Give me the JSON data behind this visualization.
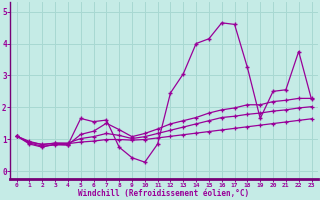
{
  "xlabel": "Windchill (Refroidissement éolien,°C)",
  "background_color": "#c5ebe6",
  "grid_color": "#a8d8d2",
  "line_color": "#990099",
  "spine_color": "#770077",
  "x_values": [
    0,
    1,
    2,
    3,
    4,
    5,
    6,
    7,
    8,
    9,
    10,
    11,
    12,
    13,
    14,
    15,
    16,
    17,
    18,
    19,
    20,
    21,
    22,
    23
  ],
  "series1": [
    1.1,
    0.85,
    0.75,
    0.85,
    0.82,
    1.65,
    1.55,
    1.6,
    0.75,
    0.42,
    0.28,
    0.85,
    2.45,
    3.05,
    4.0,
    4.15,
    4.65,
    4.6,
    3.25,
    1.65,
    2.5,
    2.55,
    3.75,
    2.25
  ],
  "series2": [
    1.1,
    0.88,
    0.78,
    0.82,
    0.82,
    1.15,
    1.25,
    1.5,
    1.3,
    1.08,
    1.18,
    1.32,
    1.48,
    1.58,
    1.68,
    1.82,
    1.92,
    1.98,
    2.08,
    2.08,
    2.18,
    2.22,
    2.28,
    2.28
  ],
  "series3": [
    1.1,
    0.93,
    0.83,
    0.88,
    0.88,
    1.02,
    1.08,
    1.18,
    1.12,
    1.02,
    1.08,
    1.18,
    1.28,
    1.38,
    1.48,
    1.58,
    1.68,
    1.72,
    1.78,
    1.82,
    1.88,
    1.92,
    1.98,
    2.02
  ],
  "series4": [
    1.1,
    0.9,
    0.84,
    0.87,
    0.86,
    0.91,
    0.94,
    0.99,
    0.99,
    0.97,
    0.99,
    1.04,
    1.09,
    1.14,
    1.19,
    1.24,
    1.29,
    1.34,
    1.39,
    1.44,
    1.49,
    1.54,
    1.59,
    1.64
  ],
  "ylim": [
    -0.25,
    5.3
  ],
  "yticks": [
    0,
    1,
    2,
    3,
    4,
    5
  ],
  "xlim": [
    -0.5,
    23.5
  ]
}
